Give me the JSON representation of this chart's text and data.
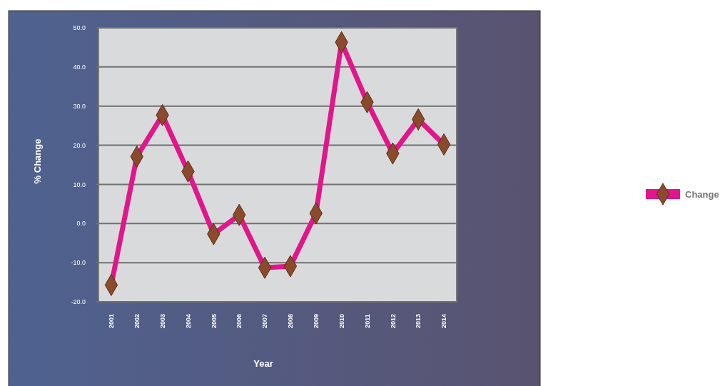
{
  "chart_data": {
    "type": "line",
    "xlabel": "Year",
    "ylabel": "% Change",
    "categories": [
      "2001",
      "2002",
      "2003",
      "2004",
      "2005",
      "2006",
      "2007",
      "2008",
      "2009",
      "2010",
      "2011",
      "2012",
      "2013",
      "2014"
    ],
    "series": [
      {
        "name": "Change",
        "color": "#e0168b",
        "values": [
          -15.7,
          17.1,
          27.7,
          13.3,
          -2.7,
          2.2,
          -11.3,
          -10.9,
          2.6,
          46.3,
          31.0,
          17.9,
          26.6,
          20.2
        ]
      }
    ],
    "ylim": [
      -20,
      50
    ],
    "yticks": [
      {
        "value": -20,
        "label": "-20.0"
      },
      {
        "value": -10,
        "label": "-10.0"
      },
      {
        "value": 0,
        "label": "0.0"
      },
      {
        "value": 10,
        "label": "10.0"
      },
      {
        "value": 20,
        "label": "20.0"
      },
      {
        "value": 30,
        "label": "30.0"
      },
      {
        "value": 40,
        "label": "40.0"
      },
      {
        "value": 50,
        "label": "50.0"
      }
    ],
    "grid": "y",
    "legend": "right",
    "marker": "diamond",
    "line_style": "solid"
  }
}
